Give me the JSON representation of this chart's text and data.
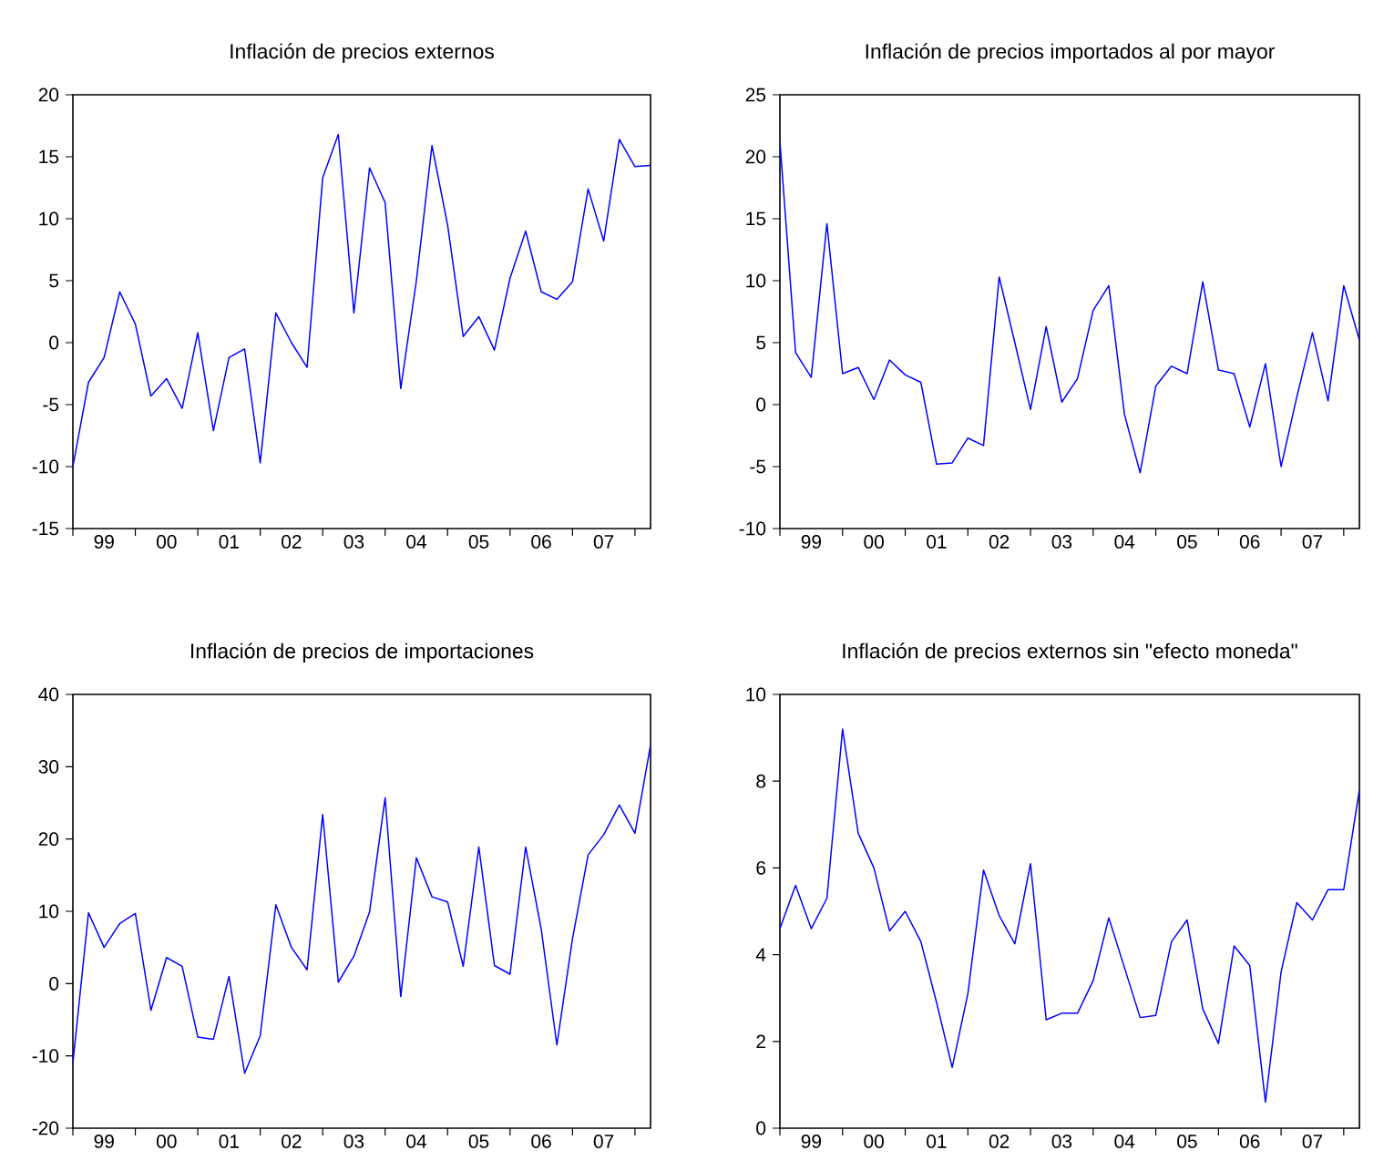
{
  "chart_data": [
    {
      "type": "line",
      "title": "Inflación de precios externos",
      "color": "#0000ff",
      "xlim": [
        "1999-01",
        "2008-04"
      ],
      "ylim": [
        -15,
        20
      ],
      "yticks": [
        -15,
        -10,
        -5,
        0,
        5,
        10,
        15,
        20
      ],
      "xticks": [
        {
          "value": "1999-01",
          "label": null
        },
        {
          "value": "2000-01",
          "label": null
        },
        {
          "value": "2001-01",
          "label": null
        },
        {
          "value": "2002-01",
          "label": null
        },
        {
          "value": "2003-01",
          "label": null
        },
        {
          "value": "2004-01",
          "label": null
        },
        {
          "value": "2005-01",
          "label": null
        },
        {
          "value": "2006-01",
          "label": null
        },
        {
          "value": "2007-01",
          "label": null
        },
        {
          "value": "2008-01",
          "label": null
        },
        {
          "value": "1999-07",
          "label": "99"
        },
        {
          "value": "2000-07",
          "label": "00"
        },
        {
          "value": "2001-07",
          "label": "01"
        },
        {
          "value": "2002-07",
          "label": "02"
        },
        {
          "value": "2003-07",
          "label": "03"
        },
        {
          "value": "2004-07",
          "label": "04"
        },
        {
          "value": "2005-07",
          "label": "05"
        },
        {
          "value": "2006-07",
          "label": "06"
        },
        {
          "value": "2007-07",
          "label": "07"
        }
      ],
      "x": [
        "1999-01",
        "1999-04",
        "1999-07",
        "1999-10",
        "2000-01",
        "2000-04",
        "2000-07",
        "2000-10",
        "2001-01",
        "2001-04",
        "2001-07",
        "2001-10",
        "2002-01",
        "2002-04",
        "2002-07",
        "2002-10",
        "2003-01",
        "2003-04",
        "2003-07",
        "2003-10",
        "2004-01",
        "2004-04",
        "2004-07",
        "2004-10",
        "2005-01",
        "2005-04",
        "2005-07",
        "2005-10",
        "2006-01",
        "2006-04",
        "2006-07",
        "2006-10",
        "2007-01",
        "2007-04",
        "2007-07",
        "2007-10",
        "2008-01",
        "2008-04"
      ],
      "values": [
        -10,
        -3.2,
        -1.2,
        4.1,
        1.5,
        -4.3,
        -2.9,
        -5.3,
        0.8,
        -7.1,
        -1.2,
        -0.5,
        -9.7,
        2.4,
        0,
        -2,
        13.3,
        16.8,
        2.4,
        14.1,
        11.3,
        -3.7,
        5,
        15.9,
        9.5,
        0.5,
        2.1,
        -0.6,
        5.2,
        9,
        4.1,
        3.5,
        4.9,
        12.4,
        8.2,
        16.4,
        14.2,
        14.3
      ]
    },
    {
      "type": "line",
      "title": "Inflación de precios importados al por mayor",
      "color": "#0000ff",
      "xlim": [
        "1999-01",
        "2008-04"
      ],
      "ylim": [
        -10,
        25
      ],
      "yticks": [
        -10,
        -5,
        0,
        5,
        10,
        15,
        20,
        25
      ],
      "xticks": [
        {
          "value": "1999-01",
          "label": null
        },
        {
          "value": "2000-01",
          "label": null
        },
        {
          "value": "2001-01",
          "label": null
        },
        {
          "value": "2002-01",
          "label": null
        },
        {
          "value": "2003-01",
          "label": null
        },
        {
          "value": "2004-01",
          "label": null
        },
        {
          "value": "2005-01",
          "label": null
        },
        {
          "value": "2006-01",
          "label": null
        },
        {
          "value": "2007-01",
          "label": null
        },
        {
          "value": "2008-01",
          "label": null
        },
        {
          "value": "1999-07",
          "label": "99"
        },
        {
          "value": "2000-07",
          "label": "00"
        },
        {
          "value": "2001-07",
          "label": "01"
        },
        {
          "value": "2002-07",
          "label": "02"
        },
        {
          "value": "2003-07",
          "label": "03"
        },
        {
          "value": "2004-07",
          "label": "04"
        },
        {
          "value": "2005-07",
          "label": "05"
        },
        {
          "value": "2006-07",
          "label": "06"
        },
        {
          "value": "2007-07",
          "label": "07"
        }
      ],
      "x": [
        "1999-01",
        "1999-04",
        "1999-07",
        "1999-10",
        "2000-01",
        "2000-04",
        "2000-07",
        "2000-10",
        "2001-01",
        "2001-04",
        "2001-07",
        "2001-10",
        "2002-01",
        "2002-04",
        "2002-07",
        "2002-10",
        "2003-01",
        "2003-04",
        "2003-07",
        "2003-10",
        "2004-01",
        "2004-04",
        "2004-07",
        "2004-10",
        "2005-01",
        "2005-04",
        "2005-07",
        "2005-10",
        "2006-01",
        "2006-04",
        "2006-07",
        "2006-10",
        "2007-01",
        "2007-04",
        "2007-07",
        "2007-10",
        "2008-01",
        "2008-04"
      ],
      "values": [
        21.2,
        4.2,
        2.2,
        14.6,
        2.5,
        3.0,
        0.4,
        3.6,
        2.4,
        1.8,
        -4.8,
        -4.7,
        -2.7,
        -3.3,
        10.3,
        5.0,
        -0.4,
        6.3,
        0.2,
        2.1,
        7.6,
        9.6,
        -0.8,
        -5.5,
        1.5,
        3.1,
        2.5,
        9.9,
        2.8,
        2.5,
        -1.8,
        3.3,
        -5.0,
        0.6,
        5.8,
        0.3,
        9.6,
        5.2
      ]
    },
    {
      "type": "line",
      "title": "Inflación de precios de importaciones",
      "color": "#0000ff",
      "xlim": [
        "1999-01",
        "2008-04"
      ],
      "ylim": [
        -20,
        40
      ],
      "yticks": [
        -20,
        -10,
        0,
        10,
        20,
        30,
        40
      ],
      "xticks": [
        {
          "value": "1999-01",
          "label": null
        },
        {
          "value": "2000-01",
          "label": null
        },
        {
          "value": "2001-01",
          "label": null
        },
        {
          "value": "2002-01",
          "label": null
        },
        {
          "value": "2003-01",
          "label": null
        },
        {
          "value": "2004-01",
          "label": null
        },
        {
          "value": "2005-01",
          "label": null
        },
        {
          "value": "2006-01",
          "label": null
        },
        {
          "value": "2007-01",
          "label": null
        },
        {
          "value": "2008-01",
          "label": null
        },
        {
          "value": "1999-07",
          "label": "99"
        },
        {
          "value": "2000-07",
          "label": "00"
        },
        {
          "value": "2001-07",
          "label": "01"
        },
        {
          "value": "2002-07",
          "label": "02"
        },
        {
          "value": "2003-07",
          "label": "03"
        },
        {
          "value": "2004-07",
          "label": "04"
        },
        {
          "value": "2005-07",
          "label": "05"
        },
        {
          "value": "2006-07",
          "label": "06"
        },
        {
          "value": "2007-07",
          "label": "07"
        }
      ],
      "x": [
        "1999-01",
        "1999-04",
        "1999-07",
        "1999-10",
        "2000-01",
        "2000-04",
        "2000-07",
        "2000-10",
        "2001-01",
        "2001-04",
        "2001-07",
        "2001-10",
        "2002-01",
        "2002-04",
        "2002-07",
        "2002-10",
        "2003-01",
        "2003-04",
        "2003-07",
        "2003-10",
        "2004-01",
        "2004-04",
        "2004-07",
        "2004-10",
        "2005-01",
        "2005-04",
        "2005-07",
        "2005-10",
        "2006-01",
        "2006-04",
        "2006-07",
        "2006-10",
        "2007-01",
        "2007-04",
        "2007-07",
        "2007-10",
        "2008-01",
        "2008-04"
      ],
      "values": [
        -11,
        9.8,
        5.0,
        8.3,
        9.7,
        -3.7,
        3.6,
        2.4,
        -7.4,
        -7.7,
        1.0,
        -12.4,
        -7.2,
        10.9,
        5.0,
        1.9,
        23.4,
        0.2,
        3.8,
        9.9,
        25.7,
        -1.8,
        17.4,
        12.0,
        11.3,
        2.4,
        18.9,
        2.5,
        1.3,
        18.9,
        7.5,
        -8.5,
        6.2,
        17.8,
        20.6,
        24.7,
        20.8,
        33.0
      ]
    },
    {
      "type": "line",
      "title": "Inflación de precios externos sin \"efecto moneda\"",
      "color": "#0000ff",
      "xlim": [
        "1999-01",
        "2008-04"
      ],
      "ylim": [
        0,
        10
      ],
      "yticks": [
        0,
        2,
        4,
        6,
        8,
        10
      ],
      "xticks": [
        {
          "value": "1999-01",
          "label": null
        },
        {
          "value": "2000-01",
          "label": null
        },
        {
          "value": "2001-01",
          "label": null
        },
        {
          "value": "2002-01",
          "label": null
        },
        {
          "value": "2003-01",
          "label": null
        },
        {
          "value": "2004-01",
          "label": null
        },
        {
          "value": "2005-01",
          "label": null
        },
        {
          "value": "2006-01",
          "label": null
        },
        {
          "value": "2007-01",
          "label": null
        },
        {
          "value": "2008-01",
          "label": null
        },
        {
          "value": "1999-07",
          "label": "99"
        },
        {
          "value": "2000-07",
          "label": "00"
        },
        {
          "value": "2001-07",
          "label": "01"
        },
        {
          "value": "2002-07",
          "label": "02"
        },
        {
          "value": "2003-07",
          "label": "03"
        },
        {
          "value": "2004-07",
          "label": "04"
        },
        {
          "value": "2005-07",
          "label": "05"
        },
        {
          "value": "2006-07",
          "label": "06"
        },
        {
          "value": "2007-07",
          "label": "07"
        }
      ],
      "x": [
        "1999-01",
        "1999-04",
        "1999-07",
        "1999-10",
        "2000-01",
        "2000-04",
        "2000-07",
        "2000-10",
        "2001-01",
        "2001-04",
        "2001-07",
        "2001-10",
        "2002-01",
        "2002-04",
        "2002-07",
        "2002-10",
        "2003-01",
        "2003-04",
        "2003-07",
        "2003-10",
        "2004-01",
        "2004-04",
        "2004-07",
        "2004-10",
        "2005-01",
        "2005-04",
        "2005-07",
        "2005-10",
        "2006-01",
        "2006-04",
        "2006-07",
        "2006-10",
        "2007-01",
        "2007-04",
        "2007-07",
        "2007-10",
        "2008-01",
        "2008-04"
      ],
      "values": [
        4.6,
        5.6,
        4.6,
        5.3,
        9.2,
        6.8,
        6.0,
        4.55,
        5.0,
        4.3,
        2.9,
        1.4,
        3.1,
        5.95,
        4.9,
        4.25,
        6.1,
        2.5,
        2.65,
        2.65,
        3.4,
        4.85,
        3.7,
        2.55,
        2.6,
        4.3,
        4.8,
        2.75,
        1.95,
        4.2,
        3.75,
        0.6,
        3.6,
        5.2,
        4.8,
        5.5,
        5.5,
        7.8
      ]
    }
  ]
}
